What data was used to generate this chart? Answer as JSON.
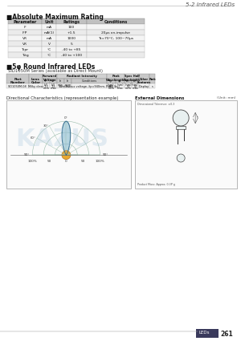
{
  "page_title": "5-2 Infrared LEDs",
  "section1_title": "■Absolute Maximum Rating",
  "abs_max_headers": [
    "Parameter",
    "Unit",
    "Ratings",
    "Conditions"
  ],
  "abs_max_rows": [
    [
      "IF",
      "mA",
      "100",
      ""
    ],
    [
      "IFP",
      "mA(1)",
      "+1.5",
      "20μs on-impulse"
    ],
    [
      "VR",
      "mA",
      "1000",
      "Ta=70°C, 100~70μs"
    ],
    [
      "VR",
      "V",
      "5",
      ""
    ],
    [
      "Topr",
      "°C",
      "-40 to +85",
      ""
    ],
    [
      "Tstg",
      "°C",
      "-40 to +100",
      ""
    ]
  ],
  "section2_title": "■5φ Round Infrared LEDs",
  "series_text": "SID1050M Series (available as Direct Mount)",
  "dir_char_title": "Directional Characteristics (representation example)",
  "ext_dim_title": "External Dimensions",
  "ext_dim_unit": "(Unit: mm)",
  "page_num": "261",
  "page_label": "LEDs",
  "bg_color": "#ffffff"
}
